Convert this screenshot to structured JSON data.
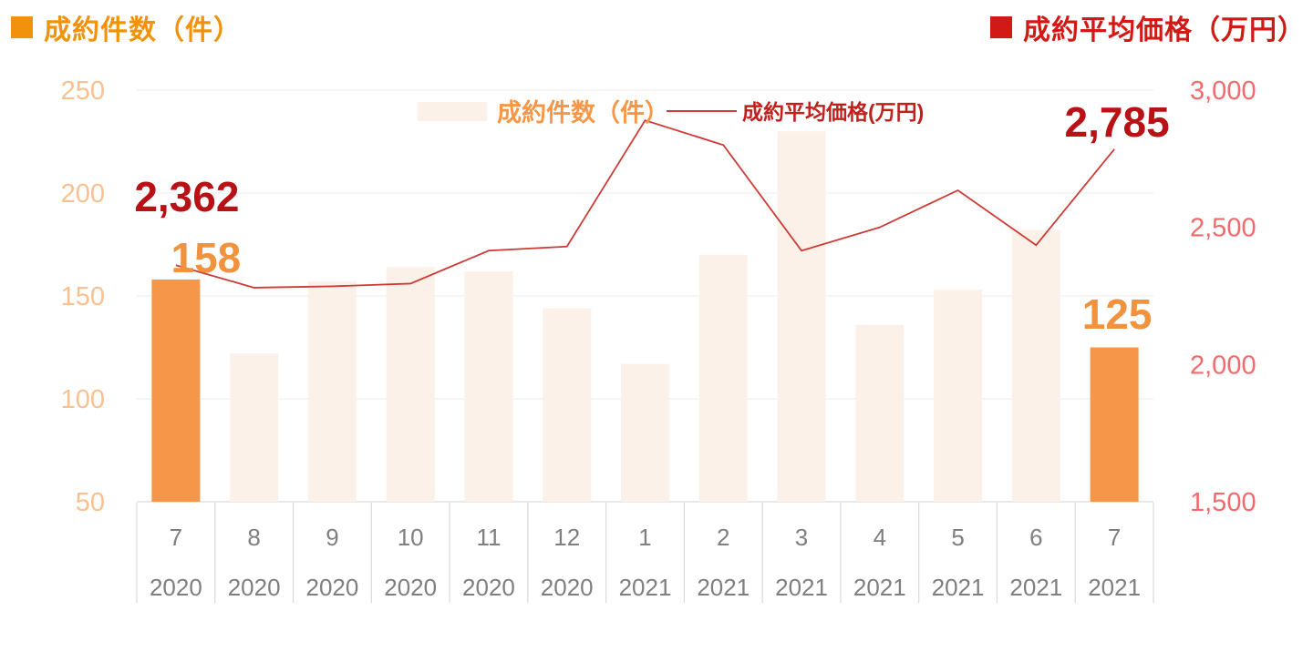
{
  "header": {
    "left_title": "成約件数（件）",
    "right_title": "成約平均価格（万円）"
  },
  "legend": {
    "bar_label": "成約件数（件）",
    "line_label": "成約平均価格(万円)"
  },
  "colors": {
    "bar_highlight": "#F59648",
    "bar_light": "#FCF1E8",
    "line_red": "#CE3A36",
    "annotation_red": "#B81216",
    "annotation_orange": "#F0923E",
    "left_axis_text": "#FAC090",
    "right_axis_text": "#F4696B",
    "x_axis_text": "#7F7F7F",
    "gridline": "#F2F2F2",
    "axis_line": "#E0E0E0",
    "separator": "#D9D9D9",
    "title_left": "#F0920B",
    "title_right": "#D11A16",
    "legend_bar_text": "#F79646",
    "legend_line_text": "#C0211D"
  },
  "chart_data": {
    "type": "combo-bar-line",
    "categories": [
      {
        "month": "7",
        "year": "2020"
      },
      {
        "month": "8",
        "year": "2020"
      },
      {
        "month": "9",
        "year": "2020"
      },
      {
        "month": "10",
        "year": "2020"
      },
      {
        "month": "11",
        "year": "2020"
      },
      {
        "month": "12",
        "year": "2020"
      },
      {
        "month": "1",
        "year": "2021"
      },
      {
        "month": "2",
        "year": "2021"
      },
      {
        "month": "3",
        "year": "2021"
      },
      {
        "month": "4",
        "year": "2021"
      },
      {
        "month": "5",
        "year": "2021"
      },
      {
        "month": "6",
        "year": "2021"
      },
      {
        "month": "7",
        "year": "2021"
      }
    ],
    "series": [
      {
        "name": "成約件数（件）",
        "type": "bar",
        "axis": "left",
        "values": [
          158,
          122,
          157,
          164,
          162,
          144,
          117,
          170,
          230,
          136,
          153,
          182,
          125
        ],
        "highlight_indices": [
          0,
          12
        ]
      },
      {
        "name": "成約平均価格(万円)",
        "type": "line",
        "axis": "right",
        "values": [
          2362,
          2280,
          2285,
          2295,
          2415,
          2430,
          2890,
          2800,
          2415,
          2500,
          2635,
          2435,
          2785
        ]
      }
    ],
    "left_axis": {
      "min": 50,
      "max": 250,
      "ticks": [
        250,
        200,
        150,
        100,
        50
      ],
      "tick_labels": [
        "250",
        "200",
        "150",
        "100",
        "50"
      ]
    },
    "right_axis": {
      "min": 1500,
      "max": 3000,
      "ticks": [
        3000,
        2500,
        2000,
        1500
      ],
      "tick_labels": [
        "3,000",
        "2,500",
        "2,000",
        "1,500"
      ]
    },
    "data_labels": {
      "line_first": "2,362",
      "bar_first": "158",
      "line_last": "2,785",
      "bar_last": "125"
    },
    "grid": true,
    "legend_position": "top-center"
  }
}
